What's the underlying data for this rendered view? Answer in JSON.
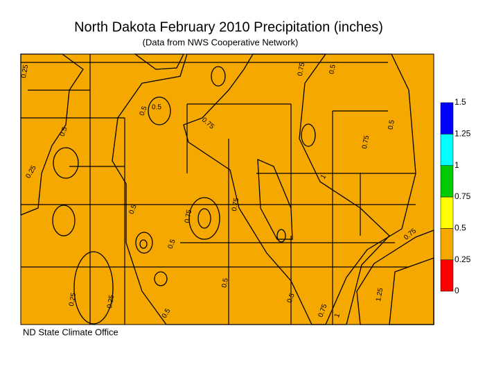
{
  "header": {
    "title": "North Dakota February 2010 Precipitation (inches)",
    "subtitle": "(Data from NWS Cooperative Network)"
  },
  "legend": {
    "levels": [
      0,
      0.25,
      0.5,
      0.75,
      1,
      1.25,
      1.5
    ],
    "colors": [
      "#ff0000",
      "#f5a800",
      "#ffff00",
      "#00cc00",
      "#00ffff",
      "#0000ff"
    ]
  },
  "contour_labels": [
    "0.25",
    "0.25",
    "0.5",
    "0.5",
    "0.75",
    "0.5",
    "0.75",
    "0.5",
    "0.75",
    "0.75",
    "0.5",
    "0.5",
    "0.75",
    "0.5",
    "0.5",
    "0.25",
    "0.25",
    "0.5",
    "0.5",
    "0.75",
    "1",
    "1.25",
    "0.75",
    "1"
  ],
  "credit": "ND State Climate Office"
}
